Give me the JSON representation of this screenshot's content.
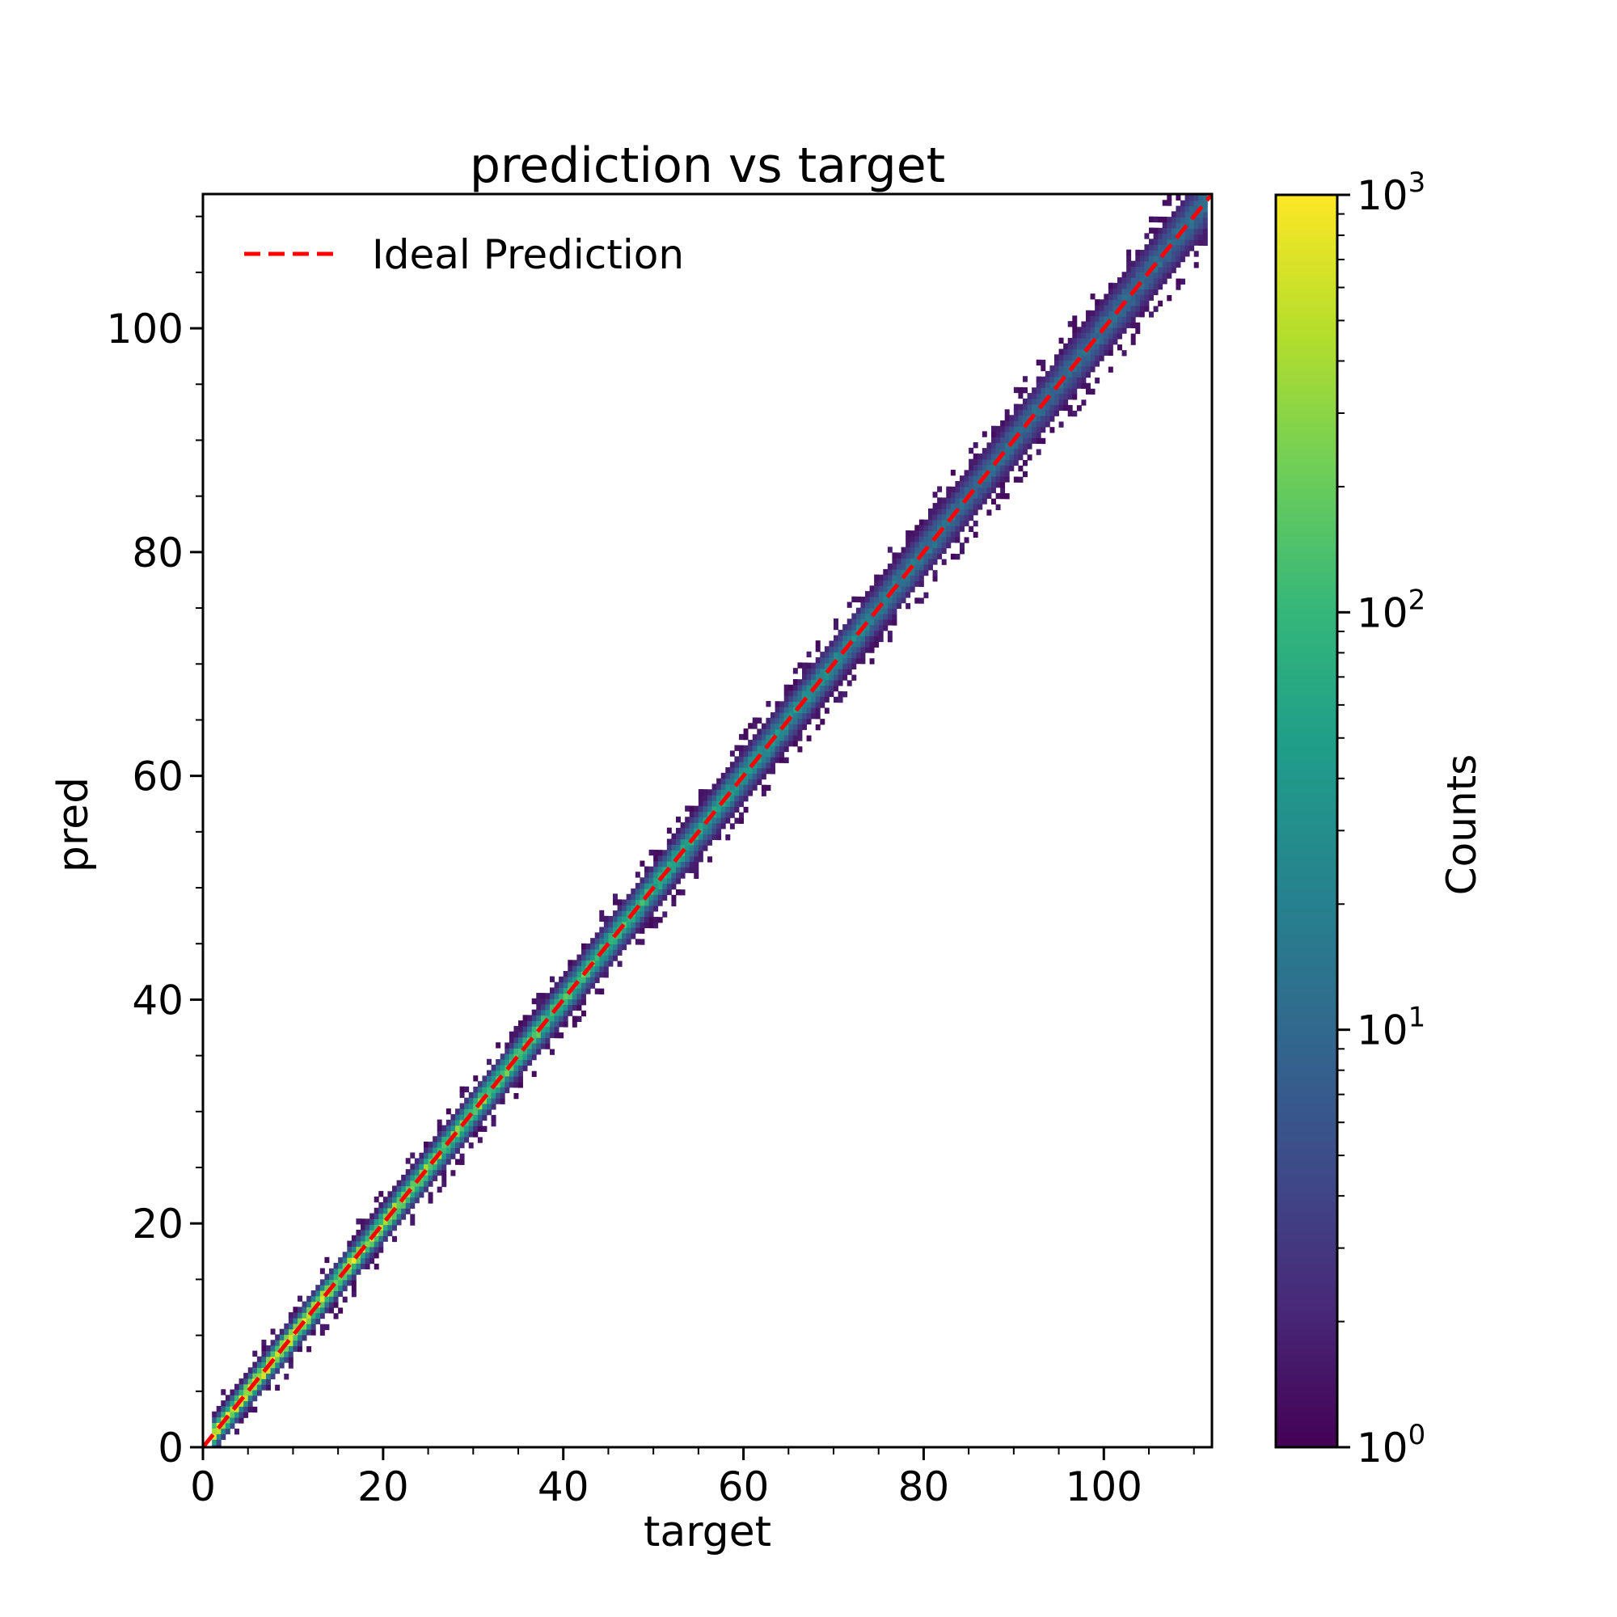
{
  "chart_data": {
    "type": "heatmap",
    "title": "prediction vs target",
    "xlabel": "target",
    "ylabel": "pred",
    "xlim": [
      0,
      112
    ],
    "ylim": [
      0,
      112
    ],
    "x_ticks": [
      "0",
      "20",
      "40",
      "60",
      "80",
      "100"
    ],
    "x_tick_values": [
      0,
      20,
      40,
      60,
      80,
      100
    ],
    "y_ticks": [
      "0",
      "20",
      "40",
      "60",
      "80",
      "100"
    ],
    "y_tick_values": [
      0,
      20,
      40,
      60,
      80,
      100
    ],
    "legend": {
      "placement": "top-left",
      "entries": [
        {
          "label": "Ideal Prediction",
          "color": "#ff0000",
          "style": "dashed"
        }
      ]
    },
    "reference_line": {
      "label": "Ideal Prediction",
      "x": [
        0,
        112
      ],
      "y": [
        0,
        112
      ]
    },
    "colorbar": {
      "label": "Counts",
      "scale": "log",
      "range": [
        1,
        1000
      ],
      "ticks": [
        {
          "base": "10",
          "exp": "0",
          "value": 1
        },
        {
          "base": "10",
          "exp": "1",
          "value": 10
        },
        {
          "base": "10",
          "exp": "2",
          "value": 100
        },
        {
          "base": "10",
          "exp": "3",
          "value": 1000
        }
      ],
      "colormap": "viridis"
    },
    "density": {
      "description": "2D histogram of pred vs target concentrated along y = x",
      "x_range": [
        1,
        111
      ],
      "y_range": [
        1,
        111
      ],
      "peak_count": 1000
    },
    "grid": false
  },
  "colors": {
    "line": "#ff0000",
    "axes": "#000000",
    "viridis": [
      "#440154",
      "#482878",
      "#3e4a89",
      "#31688e",
      "#26828e",
      "#1f9e89",
      "#35b779",
      "#6ece58",
      "#b5de2b",
      "#fde725"
    ]
  }
}
